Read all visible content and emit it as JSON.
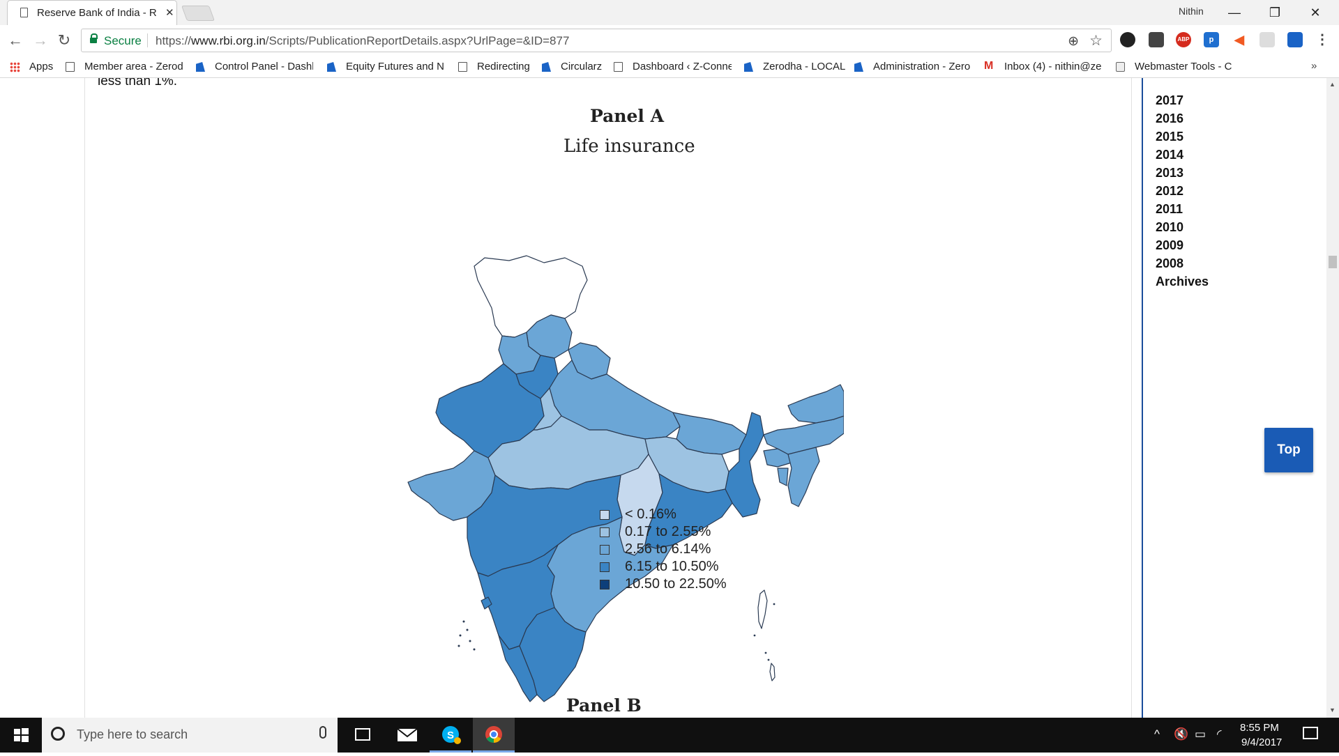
{
  "browser": {
    "tab_title": "Reserve Bank of India - R",
    "window_user": "Nithin",
    "secure_label": "Secure",
    "url_scheme": "https://",
    "url_host": "www.rbi.org.in",
    "url_path": "/Scripts/PublicationReportDetails.aspx?UrlPage=&ID=877"
  },
  "bookmarks": [
    {
      "label": "Apps",
      "icon": "apps-icon"
    },
    {
      "label": "Member area - Zerod",
      "icon": "page-icon"
    },
    {
      "label": "Control Panel - Dashb",
      "icon": "blue-icon"
    },
    {
      "label": "Equity Futures and N",
      "icon": "blue-icon"
    },
    {
      "label": "Redirecting",
      "icon": "page-icon"
    },
    {
      "label": "Circularz",
      "icon": "blue-icon"
    },
    {
      "label": "Dashboard ‹ Z-Conne",
      "icon": "page-icon"
    },
    {
      "label": "Zerodha - LOCAL",
      "icon": "blue-icon"
    },
    {
      "label": "Administration - Zero",
      "icon": "blue-icon"
    },
    {
      "label": "Inbox (4) - nithin@ze",
      "icon": "gmail-icon"
    },
    {
      "label": "Webmaster Tools - C",
      "icon": "webmaster-icon"
    }
  ],
  "article": {
    "prev_text": "less than 1%.",
    "panel_a_title": "Panel A",
    "panel_a_subtitle": "Life insurance",
    "panel_b_title": "Panel B"
  },
  "legend": [
    {
      "label": "< 0.16%",
      "color": "#c6d9ee"
    },
    {
      "label": "0.17 to 2.55%",
      "color": "#9dc3e2"
    },
    {
      "label": "2.56 to 6.14%",
      "color": "#6ba6d6"
    },
    {
      "label": "6.15 to 10.50%",
      "color": "#3a84c4"
    },
    {
      "label": "10.50 to 22.50%",
      "color": "#0e3f7a"
    }
  ],
  "sidebar": {
    "years": [
      "2017",
      "2016",
      "2015",
      "2014",
      "2013",
      "2012",
      "2011",
      "2010",
      "2009",
      "2008",
      "Archives"
    ],
    "top_button": "Top"
  },
  "taskbar": {
    "search_placeholder": "Type here to search",
    "time": "8:55 PM",
    "date": "9/4/2017"
  }
}
